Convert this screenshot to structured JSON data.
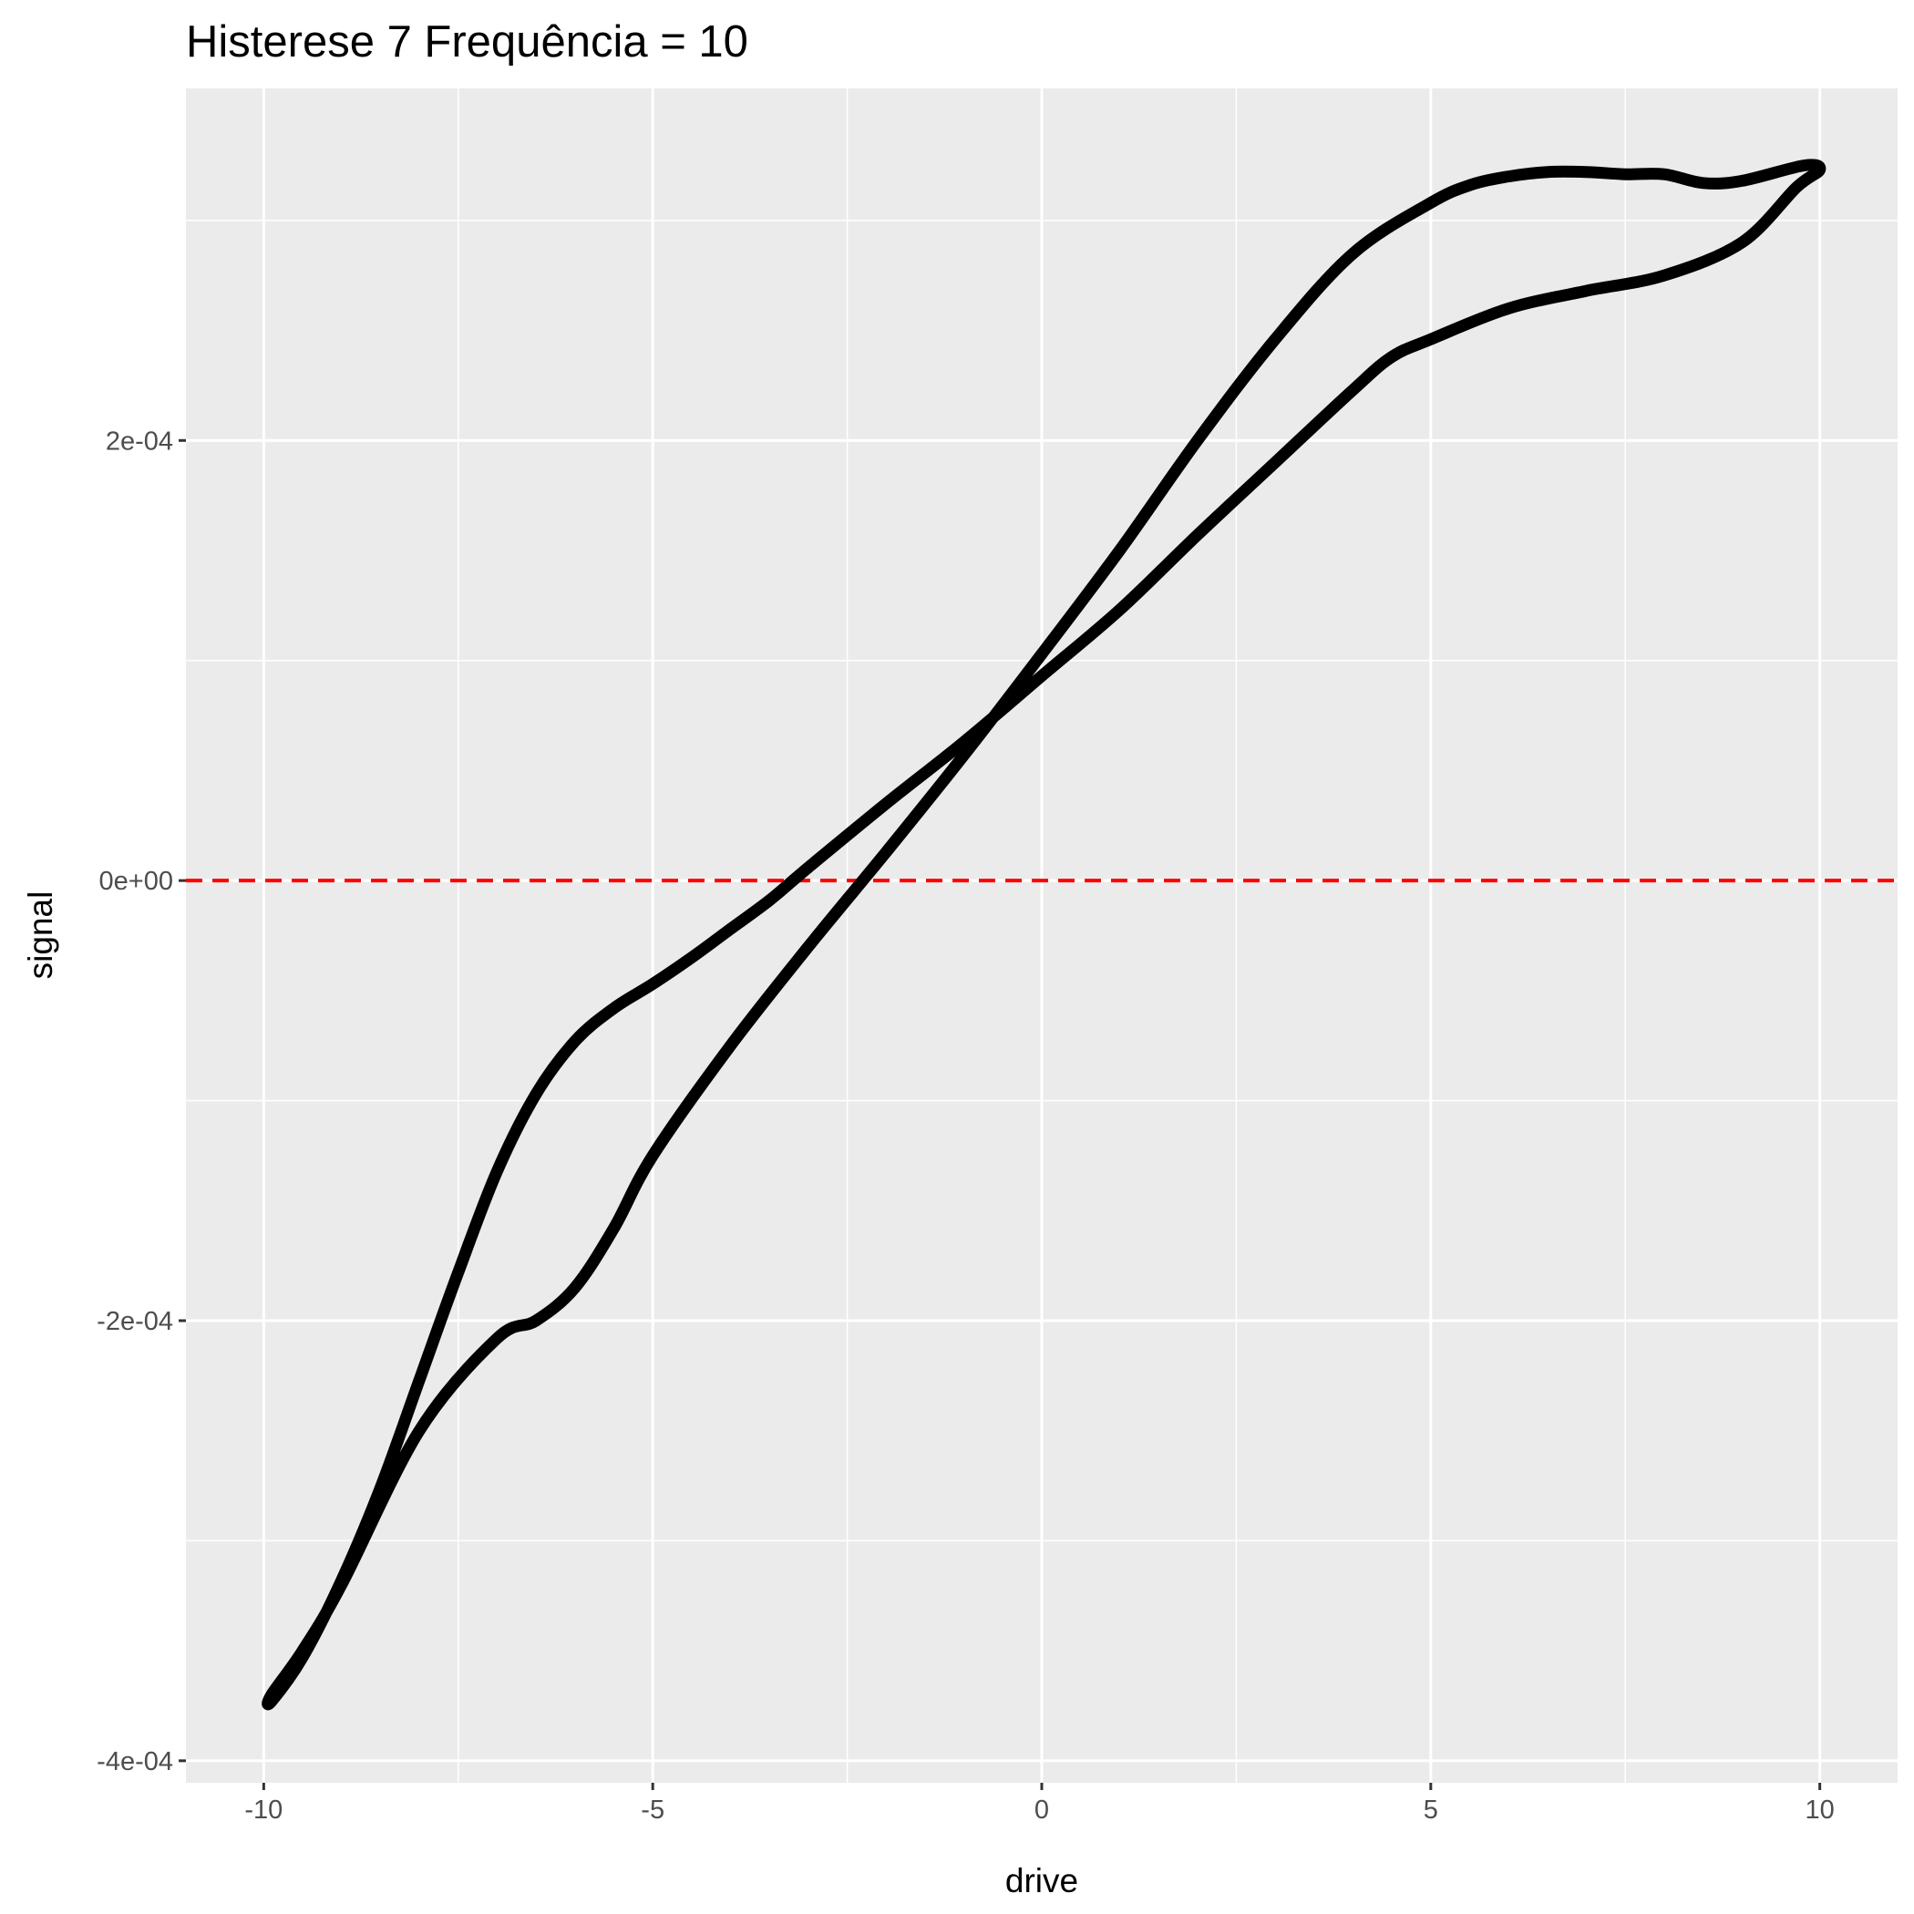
{
  "chart_data": {
    "type": "line",
    "title": "Histerese 7 Frequência = 10",
    "xlabel": "drive",
    "ylabel": "signal",
    "xlim": [
      -11,
      11
    ],
    "ylim": [
      -0.00041,
      0.00036
    ],
    "x_ticks": [
      {
        "value": -10,
        "label": "-10"
      },
      {
        "value": -5,
        "label": "-5"
      },
      {
        "value": 0,
        "label": "0"
      },
      {
        "value": 5,
        "label": "5"
      },
      {
        "value": 10,
        "label": "10"
      }
    ],
    "x_minor": [
      -7.5,
      -2.5,
      2.5,
      7.5
    ],
    "y_ticks": [
      {
        "value": -0.0004,
        "label": "-4e-04"
      },
      {
        "value": -0.0002,
        "label": "-2e-04"
      },
      {
        "value": 0,
        "label": "0e+00"
      },
      {
        "value": 0.0002,
        "label": "2e-04"
      }
    ],
    "y_minor": [
      -0.0003,
      -0.0001,
      0.0001,
      0.0003
    ],
    "reference_line": {
      "y": 0,
      "color": "#ff0000",
      "style": "dashed"
    },
    "grid": true,
    "background": "#ebebeb",
    "series": [
      {
        "color": "#000000",
        "x": [
          -9.9,
          -9.5,
          -9,
          -8.5,
          -8,
          -7.5,
          -7,
          -6.5,
          -6,
          -5.5,
          -5,
          -4.5,
          -4,
          -3.5,
          -3,
          -2,
          -1,
          0,
          1,
          2,
          3,
          4,
          4.5,
          5,
          6,
          7,
          8,
          9,
          9.7,
          10,
          9.8,
          9,
          8.5,
          8,
          7.5,
          7,
          6.5,
          6,
          5.5,
          5,
          4,
          3,
          2,
          1,
          0,
          -1,
          -2,
          -3,
          -4,
          -5,
          -5.5,
          -6,
          -6.5,
          -7,
          -8,
          -9,
          -9.5,
          -9.9
        ],
        "y": [
          -0.000373,
          -0.000353,
          -0.000318,
          -0.000276,
          -0.000227,
          -0.000178,
          -0.000132,
          -9.7e-05,
          -7.3e-05,
          -5.8e-05,
          -4.7e-05,
          -3.5e-05,
          -2.2e-05,
          -9e-06,
          6e-06,
          3.5e-05,
          6.3e-05,
          9.3e-05,
          0.000123,
          0.000157,
          0.00019,
          0.000223,
          0.000238,
          0.000246,
          0.00026,
          0.000268,
          0.000275,
          0.00029,
          0.000315,
          0.000323,
          0.000325,
          0.000318,
          0.000317,
          0.000321,
          0.000321,
          0.000322,
          0.000322,
          0.00032,
          0.000316,
          0.000308,
          0.000285,
          0.000246,
          0.0002,
          0.00015,
          0.000103,
          5.7e-05,
          1.3e-05,
          -3e-05,
          -7.5e-05,
          -0.000125,
          -0.000158,
          -0.000185,
          -0.0002,
          -0.000208,
          -0.00025,
          -0.00032,
          -0.00035,
          -0.00037
        ]
      }
    ]
  }
}
